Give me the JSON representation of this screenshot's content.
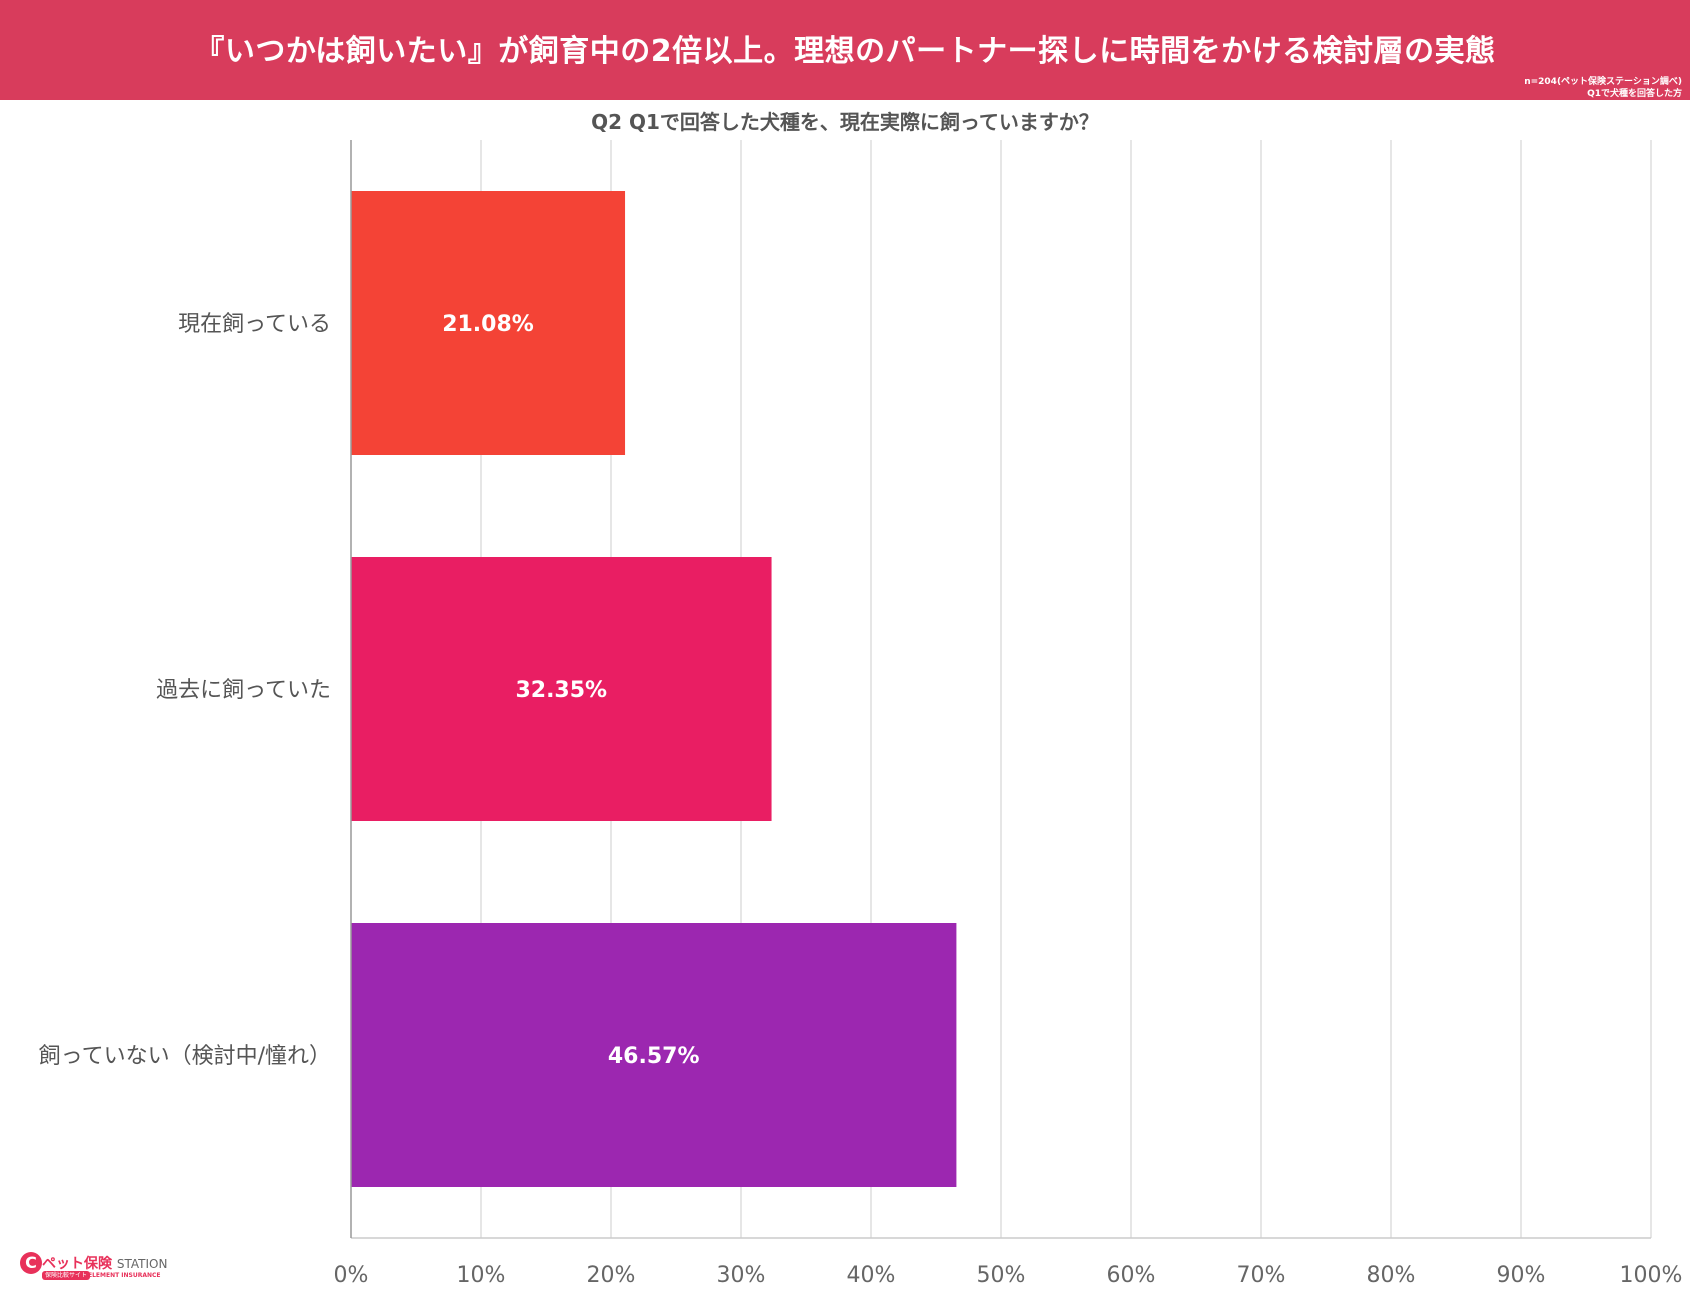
{
  "header": {
    "title": "『いつかは飼いたい』が飼育中の2倍以上。理想のパートナー探しに時間をかける検討層の実態",
    "note_line1": "n=204(ペット保険ステーション調べ)",
    "note_line2": "Q1で犬種を回答した方"
  },
  "subtitle": "Q2 Q1で回答した犬種を、現在実際に飼っていますか？",
  "logo": {
    "mark": "C",
    "name": "ペット保険",
    "name_sub": "STATION",
    "tag": "保険比較サイト",
    "tag2": "ELEMENT INSURANCE"
  },
  "chart_data": {
    "type": "bar",
    "orientation": "horizontal",
    "title": "Q2 Q1で回答した犬種を、現在実際に飼っていますか？",
    "categories": [
      "現在飼っている",
      "過去に飼っていた",
      "飼っていない（検討中/憧れ）"
    ],
    "values": [
      21.08,
      32.35,
      46.57
    ],
    "value_labels": [
      "21.08%",
      "32.35%",
      "46.57%"
    ],
    "colors": [
      "#f44336",
      "#e91e63",
      "#9c27b0"
    ],
    "xlim": [
      0,
      100
    ],
    "x_ticks": [
      0,
      10,
      20,
      30,
      40,
      50,
      60,
      70,
      80,
      90,
      100
    ],
    "x_tick_labels": [
      "0%",
      "10%",
      "20%",
      "30%",
      "40%",
      "50%",
      "60%",
      "70%",
      "80%",
      "90%",
      "100%"
    ],
    "xlabel": "",
    "ylabel": "",
    "grid": true
  }
}
